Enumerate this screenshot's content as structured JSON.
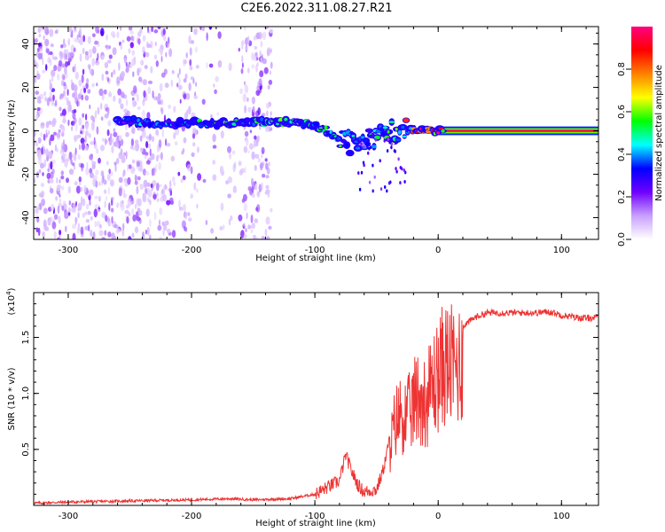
{
  "title": "C2E6.2022.311.08.27.R21",
  "chart_data": [
    {
      "type": "heatmap",
      "name": "spectrogram",
      "xlabel": "Height of straight line (km)",
      "ylabel": "Frequency (Hz)",
      "xlim": [
        -328,
        130
      ],
      "ylim": [
        -50,
        48
      ],
      "xticks": [
        -300,
        -200,
        -100,
        0,
        100
      ],
      "xtick_labels": [
        "-300",
        "-200",
        "-100",
        "0",
        "100"
      ],
      "yticks": [
        -40,
        -20,
        0,
        20,
        40
      ],
      "ytick_labels": [
        "-40",
        "-20",
        "0",
        "20",
        "40"
      ],
      "grid": false,
      "colorbar": {
        "label": "Normalized spectral amplitude",
        "range": [
          0,
          1
        ],
        "ticks": [
          0.0,
          0.2,
          0.4,
          0.6,
          0.8
        ],
        "tick_labels": [
          "0.0",
          "0.2",
          "0.4",
          "0.6",
          "0.8"
        ],
        "colors": [
          "#ffffff",
          "#c8a0ff",
          "#7000ff",
          "#0000ff",
          "#00ffff",
          "#00ff00",
          "#ffff00",
          "#ff8000",
          "#ff0000",
          "#ff0080"
        ]
      },
      "ridge": [
        {
          "x": -260,
          "y": 5,
          "amp": 0.35
        },
        {
          "x": -240,
          "y": 4,
          "amp": 0.35
        },
        {
          "x": -220,
          "y": 3,
          "amp": 0.33
        },
        {
          "x": -200,
          "y": 4,
          "amp": 0.42
        },
        {
          "x": -180,
          "y": 3,
          "amp": 0.45
        },
        {
          "x": -160,
          "y": 4,
          "amp": 0.42
        },
        {
          "x": -140,
          "y": 4,
          "amp": 0.45
        },
        {
          "x": -120,
          "y": 4,
          "amp": 0.45
        },
        {
          "x": -100,
          "y": 3,
          "amp": 0.48
        },
        {
          "x": -90,
          "y": 0,
          "amp": 0.45
        },
        {
          "x": -80,
          "y": -4,
          "amp": 0.42
        },
        {
          "x": -70,
          "y": -6,
          "amp": 0.4
        },
        {
          "x": -60,
          "y": -5,
          "amp": 0.38
        },
        {
          "x": -50,
          "y": -3,
          "amp": 0.4
        },
        {
          "x": -40,
          "y": -1,
          "amp": 0.45
        },
        {
          "x": -30,
          "y": 0,
          "amp": 0.6
        },
        {
          "x": -20,
          "y": 0,
          "amp": 0.7
        },
        {
          "x": -10,
          "y": 0,
          "amp": 0.78
        },
        {
          "x": 0,
          "y": 0,
          "amp": 0.85
        },
        {
          "x": 130,
          "y": 0,
          "amp": 0.95
        }
      ],
      "noise_region_x": [
        -328,
        -135
      ]
    },
    {
      "type": "line",
      "name": "snr",
      "xlabel": "Height of straight line (km)",
      "ylabel": "SNR (10 * v/v)",
      "y_multiplier": "(x10",
      "y_multiplier_exp": "4",
      "y_multiplier_close": ")",
      "xlim": [
        -328,
        130
      ],
      "ylim": [
        0,
        1.9
      ],
      "xticks": [
        -300,
        -200,
        -100,
        0,
        100
      ],
      "xtick_labels": [
        "-300",
        "-200",
        "-100",
        "0",
        "100"
      ],
      "yticks": [
        0.5,
        1.0,
        1.5
      ],
      "ytick_labels": [
        "0.5",
        "1.0",
        "1.5"
      ],
      "grid": false,
      "color": "#ee3333",
      "series": [
        {
          "x": [
            -328,
            -300,
            -250,
            -200,
            -170,
            -150,
            -120,
            -100,
            -90,
            -80,
            -75,
            -70,
            -65,
            -60,
            -50,
            -45,
            -40,
            -35,
            -30,
            -25,
            -20,
            -15,
            -10,
            -5,
            0,
            5,
            10,
            15,
            20,
            30,
            40,
            60,
            80,
            90,
            100,
            110,
            120,
            130
          ],
          "y": [
            0.02,
            0.03,
            0.04,
            0.05,
            0.06,
            0.05,
            0.06,
            0.1,
            0.16,
            0.22,
            0.45,
            0.3,
            0.18,
            0.12,
            0.14,
            0.3,
            0.55,
            0.9,
            1.0,
            0.95,
            1.1,
            1.2,
            1.1,
            1.3,
            1.4,
            1.55,
            1.5,
            1.5,
            1.6,
            1.68,
            1.72,
            1.72,
            1.72,
            1.73,
            1.7,
            1.68,
            1.67,
            1.68
          ]
        }
      ]
    }
  ]
}
